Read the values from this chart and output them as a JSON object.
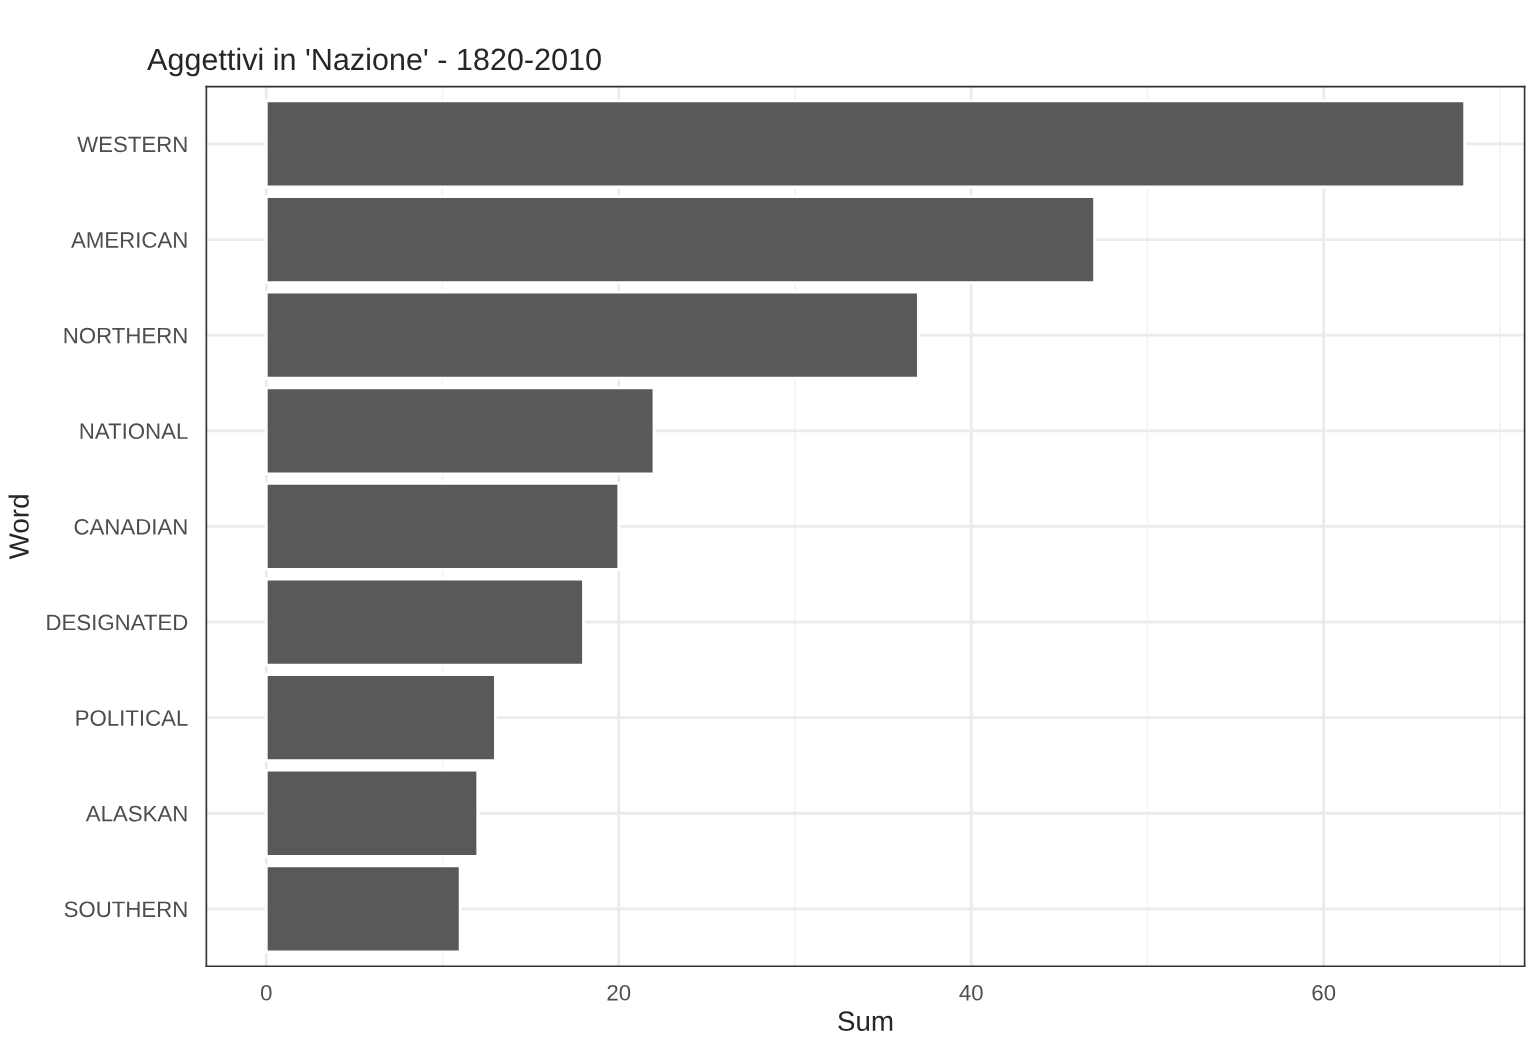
{
  "chart_data": {
    "type": "bar",
    "orientation": "horizontal",
    "title": "Aggettivi in 'Nazione' - 1820-2010",
    "xlabel": "Sum",
    "ylabel": "Word",
    "categories": [
      "WESTERN",
      "AMERICAN",
      "NORTHERN",
      "NATIONAL",
      "CANADIAN",
      "DESIGNATED",
      "POLITICAL",
      "ALASKAN",
      "SOUTHERN"
    ],
    "values": [
      68,
      47,
      37,
      22,
      20,
      18,
      13,
      12,
      11
    ],
    "color": "#595959",
    "xlim": [
      -3.4,
      71.4
    ],
    "xticks": [
      0,
      20,
      40,
      60
    ],
    "grid": true
  }
}
